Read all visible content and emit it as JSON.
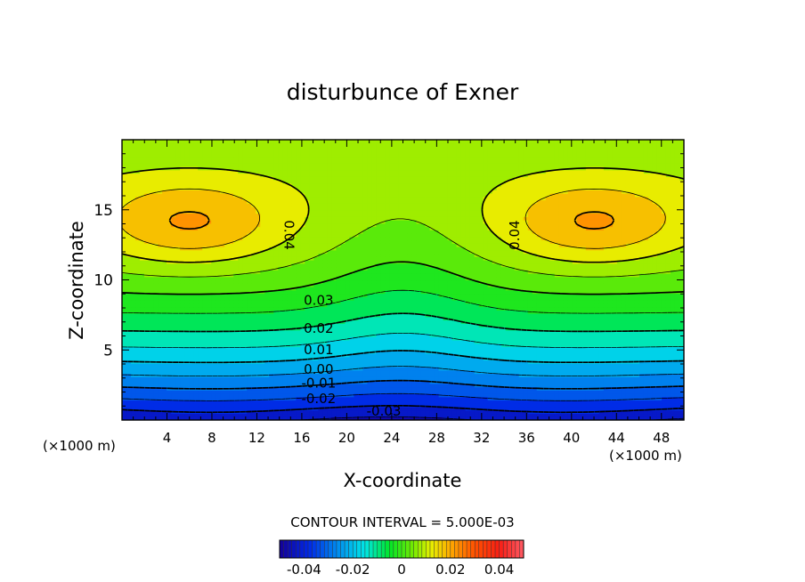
{
  "chart_data": {
    "type": "heatmap",
    "subtype": "filled-contour",
    "title": "disturbunce of Exner",
    "xlabel": "X-coordinate",
    "ylabel": "Z-coordinate",
    "x_unit_left": "(×1000 m)",
    "x_unit_right": "(×1000 m)",
    "xlim": [
      0,
      50
    ],
    "ylim": [
      0,
      20
    ],
    "x_ticks": [
      4,
      8,
      12,
      16,
      20,
      24,
      28,
      32,
      36,
      40,
      44,
      48
    ],
    "y_ticks": [
      5,
      10,
      15
    ],
    "contour_interval_text": "CONTOUR INTERVAL = 5.000E-03",
    "contour_interval": 0.005,
    "value_range": [
      -0.05,
      0.05
    ],
    "contour_labels": [
      {
        "text": "0.04",
        "x": 14.8,
        "z": 13.2,
        "rotate": 90
      },
      {
        "text": "0.04",
        "x": 35.0,
        "z": 13.2,
        "rotate": -90
      },
      {
        "text": "0.03",
        "x": 17.5,
        "z": 8.5
      },
      {
        "text": "0.02",
        "x": 17.5,
        "z": 6.5
      },
      {
        "text": "0.01",
        "x": 17.5,
        "z": 5.0
      },
      {
        "text": "0.00",
        "x": 17.5,
        "z": 3.6
      },
      {
        "text": "-0.01",
        "x": 17.5,
        "z": 2.6
      },
      {
        "text": "-0.02",
        "x": 17.5,
        "z": 1.5
      },
      {
        "text": "-0.03",
        "x": 23.3,
        "z": 0.6
      }
    ],
    "colorbar": {
      "ticks": [
        -0.04,
        -0.02,
        0,
        0.02,
        0.04
      ],
      "tick_labels": [
        "-0.04",
        "-0.02",
        "0",
        "0.02",
        "0.04"
      ]
    }
  }
}
